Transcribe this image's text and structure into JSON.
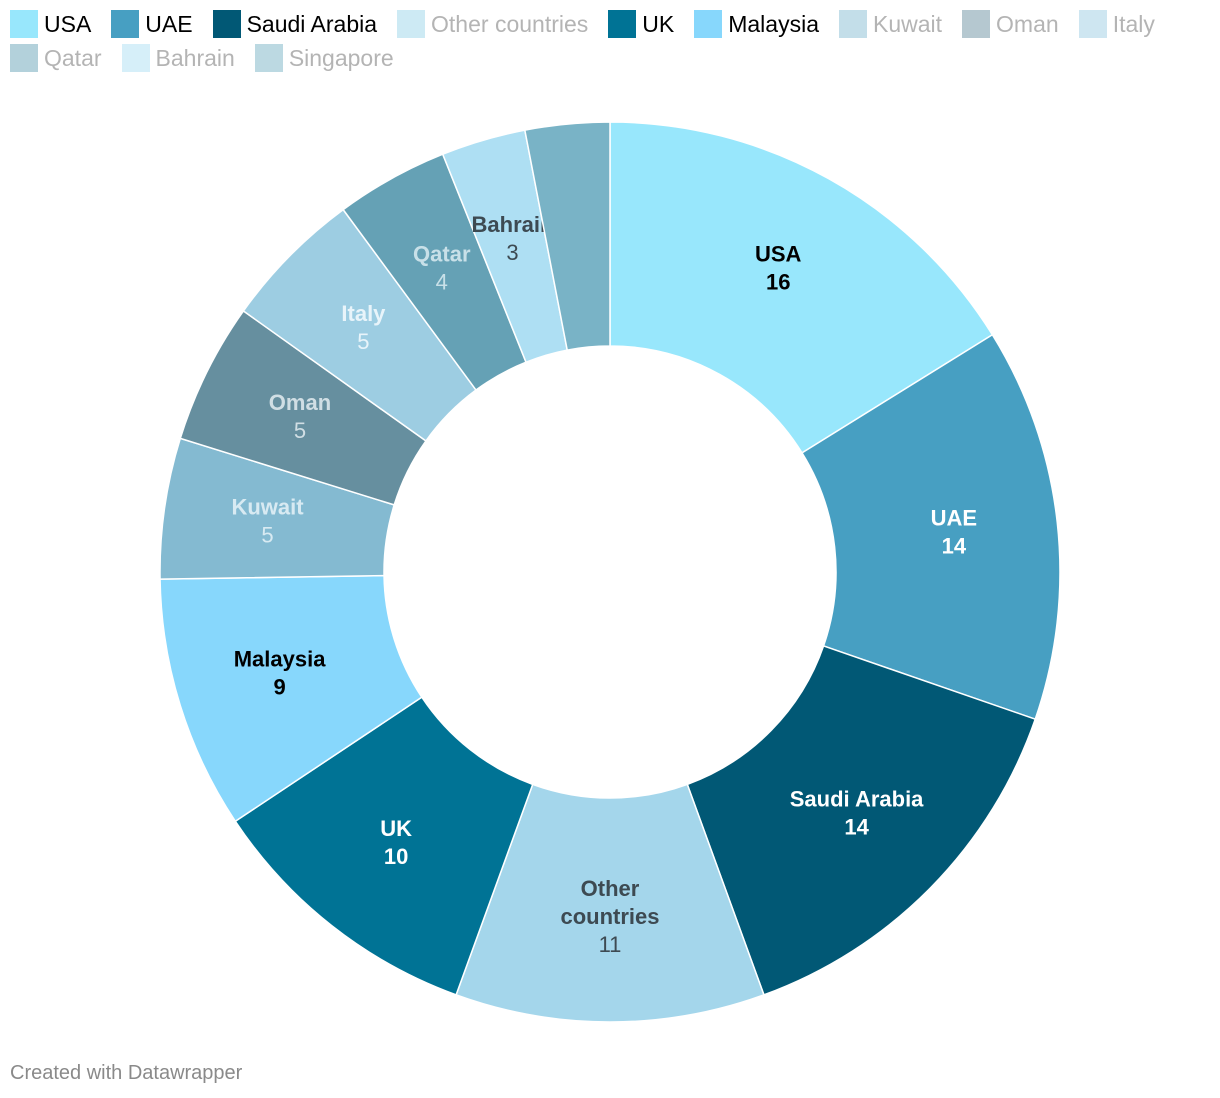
{
  "chart_data": {
    "type": "pie",
    "variant": "donut",
    "legend_position": "top",
    "slices": [
      {
        "label": "USA",
        "label_lines": [
          "USA"
        ],
        "value": 16,
        "color": "#98E7FC",
        "legend_color": "#98E7FC",
        "legend_text_color": "#000000",
        "text_color": "#000000",
        "value_bold": true
      },
      {
        "label": "UAE",
        "label_lines": [
          "UAE"
        ],
        "value": 14,
        "color": "#479FC2",
        "legend_color": "#479FC2",
        "legend_text_color": "#000000",
        "text_color": "#FFFFFF",
        "value_bold": true
      },
      {
        "label": "Saudi Arabia",
        "label_lines": [
          "Saudi Arabia"
        ],
        "value": 14,
        "color": "#015875",
        "legend_color": "#015875",
        "legend_text_color": "#000000",
        "text_color": "#FFFFFF",
        "value_bold": true
      },
      {
        "label": "Other countries",
        "label_lines": [
          "Other",
          "countries"
        ],
        "value": 11,
        "color": "#A4D6EB",
        "legend_color": "#CDEAF4",
        "legend_text_color": "#B4B4B4",
        "text_color": "#3D4A52",
        "value_bold": false
      },
      {
        "label": "UK",
        "label_lines": [
          "UK"
        ],
        "value": 10,
        "color": "#007395",
        "legend_color": "#007395",
        "legend_text_color": "#000000",
        "text_color": "#FFFFFF",
        "value_bold": true
      },
      {
        "label": "Malaysia",
        "label_lines": [
          "Malaysia"
        ],
        "value": 9,
        "color": "#87D7FC",
        "legend_color": "#87D7FC",
        "legend_text_color": "#000000",
        "text_color": "#000000",
        "value_bold": true
      },
      {
        "label": "Kuwait",
        "label_lines": [
          "Kuwait"
        ],
        "value": 5,
        "color": "#84BAD1",
        "legend_color": "#C3DEE9",
        "legend_text_color": "#B4B4B4",
        "text_color": "#D8EAF2",
        "value_bold": false
      },
      {
        "label": "Oman",
        "label_lines": [
          "Oman"
        ],
        "value": 5,
        "color": "#668F9F",
        "legend_color": "#B5C8D0",
        "legend_text_color": "#B4B4B4",
        "text_color": "#D0DEE4",
        "value_bold": false
      },
      {
        "label": "Italy",
        "label_lines": [
          "Italy"
        ],
        "value": 5,
        "color": "#9DCDE2",
        "legend_color": "#CEE6F1",
        "legend_text_color": "#B4B4B4",
        "text_color": "#E8F4FA",
        "value_bold": false
      },
      {
        "label": "Qatar",
        "label_lines": [
          "Qatar"
        ],
        "value": 4,
        "color": "#65A1B5",
        "legend_color": "#B3D1DB",
        "legend_text_color": "#B4B4B4",
        "text_color": "#C8E0E8",
        "value_bold": false
      },
      {
        "label": "Bahrain",
        "label_lines": [
          "Bahrain"
        ],
        "value": 3,
        "color": "#AEDFF3",
        "legend_color": "#D6EFF9",
        "legend_text_color": "#B4B4B4",
        "text_color": "#3D4A52",
        "value_bold": false
      },
      {
        "label": "Singapore",
        "label_lines": [],
        "value": 3,
        "color": "#79B3C6",
        "legend_color": "#BCD9E2",
        "legend_text_color": "#B4B4B4",
        "text_color": "#FFFFFF",
        "value_bold": false
      }
    ]
  },
  "footer": {
    "credit": "Created with Datawrapper"
  }
}
